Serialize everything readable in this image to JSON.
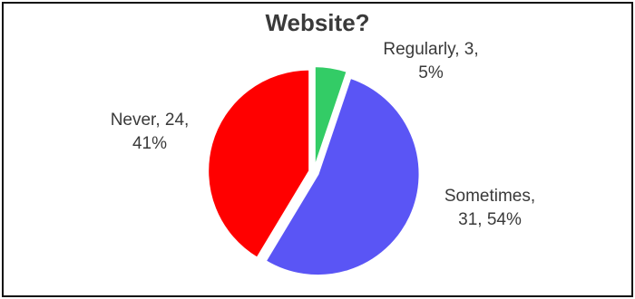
{
  "chart_data": {
    "type": "pie",
    "title": "Website?",
    "slices": [
      {
        "name": "Regularly",
        "value": 3,
        "percent": "5%",
        "color": "#33cc66",
        "line1": "Regularly, 3,",
        "line2": "5%"
      },
      {
        "name": "Sometimes",
        "value": 31,
        "percent": "54%",
        "color": "#5a55f5",
        "line1": "Sometimes,",
        "line2": "31, 54%"
      },
      {
        "name": "Never",
        "value": 24,
        "percent": "41%",
        "color": "#ff0000",
        "line1": "Never, 24,",
        "line2": "41%"
      }
    ]
  }
}
